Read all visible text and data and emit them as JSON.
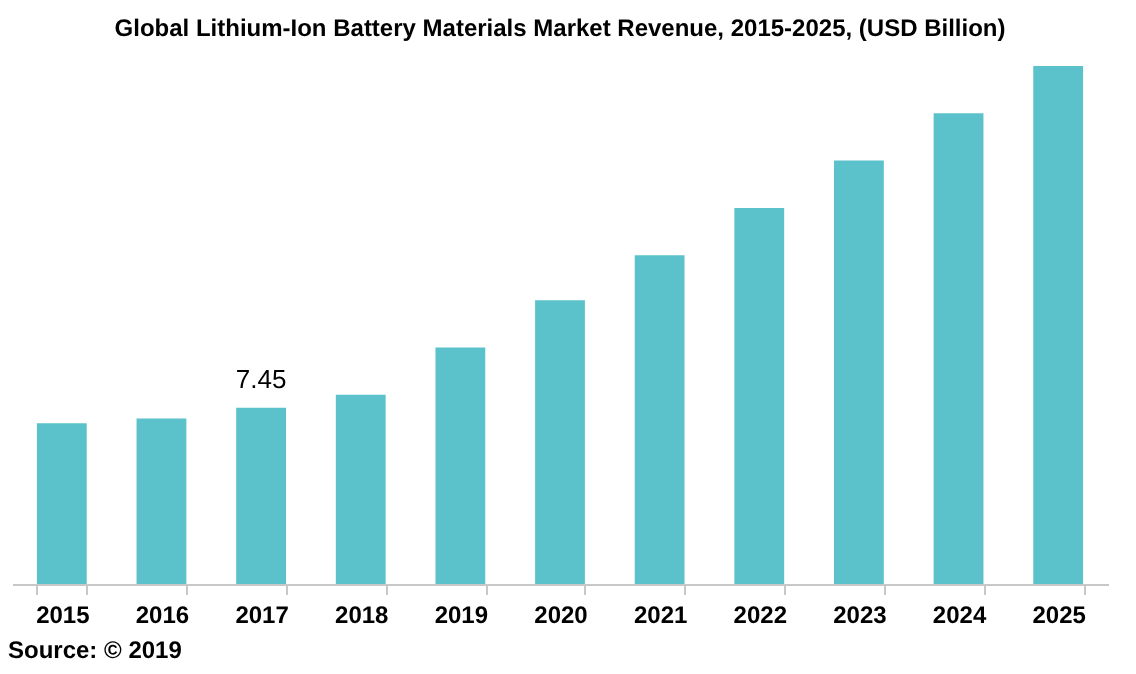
{
  "chart_data": {
    "type": "bar",
    "title": "Global  Lithium-Ion  Battery  Materials  Market Revenue,  2015-2025, (USD Billion)",
    "categories": [
      "2015",
      "2016",
      "2017",
      "2018",
      "2019",
      "2020",
      "2021",
      "2022",
      "2023",
      "2024",
      "2025"
    ],
    "values": [
      6.8,
      7.0,
      7.45,
      8.0,
      10.0,
      12.0,
      13.9,
      15.9,
      17.9,
      19.9,
      21.9
    ],
    "value_labels": [
      null,
      null,
      "7.45",
      null,
      null,
      null,
      null,
      null,
      null,
      null,
      null
    ],
    "color": "#5bc2cc",
    "annotations": [
      "Source: © 2019"
    ]
  }
}
